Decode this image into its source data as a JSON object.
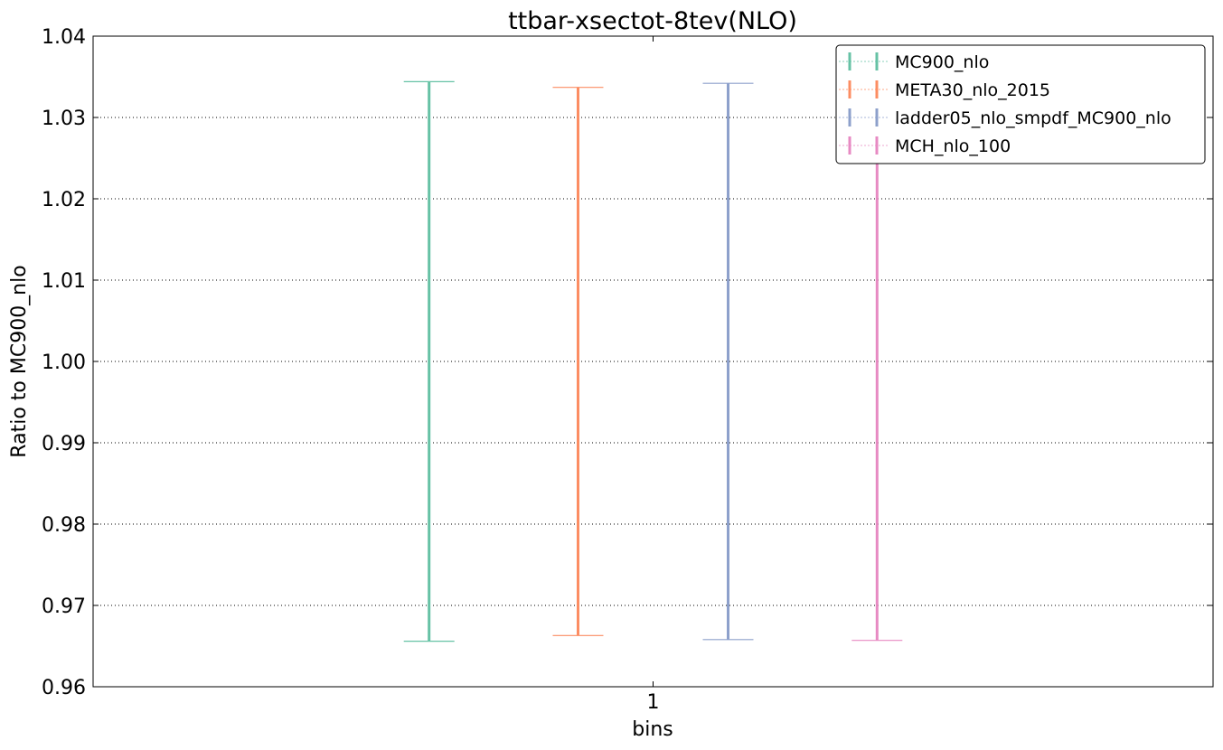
{
  "chart_data": {
    "type": "errorbar",
    "title": "ttbar-xsectot-8tev(NLO)",
    "x_label": "bins",
    "y_label": "Ratio to MC900_nlo",
    "xlim": [
      0.5,
      1.5
    ],
    "xticks": [
      1
    ],
    "ylim": [
      0.96,
      1.04
    ],
    "yticks": [
      0.96,
      0.97,
      0.98,
      0.99,
      {
        "value": 1,
        "label": "1.00"
      },
      1.01,
      1.02,
      1.03,
      1.04
    ],
    "grid": true,
    "legend": "upper right",
    "series": [
      {
        "name": "MC900_nlo",
        "color": "#66c2a5",
        "x": [
          0.8
        ],
        "values": [
          1.0
        ],
        "errors": [
          0.0344
        ]
      },
      {
        "name": "META30_nlo_2015",
        "color": "#fc8d62",
        "x": [
          0.933
        ],
        "values": [
          1.0
        ],
        "errors": [
          0.0337
        ]
      },
      {
        "name": "ladder05_nlo_smpdf_MC900_nlo",
        "color": "#8da0cb",
        "x": [
          1.067
        ],
        "values": [
          1.0
        ],
        "errors": [
          0.0342
        ]
      },
      {
        "name": "MCH_nlo_100",
        "color": "#e78ac3",
        "x": [
          1.2
        ],
        "values": [
          1.0
        ],
        "errors": [
          0.0343
        ]
      }
    ]
  }
}
